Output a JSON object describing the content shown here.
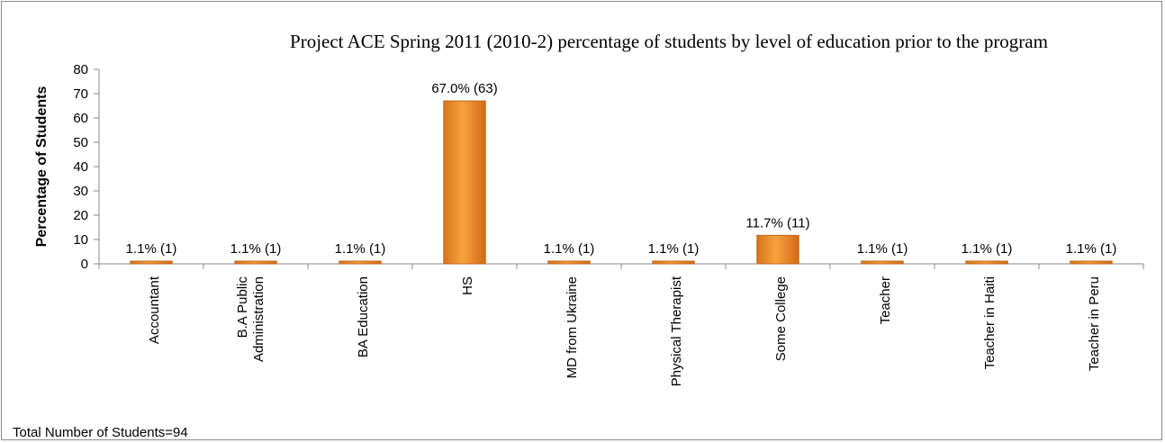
{
  "chart_data": {
    "type": "bar",
    "title": "Project ACE Spring 2011 (2010-2)  percentage of students by level of education prior to the program",
    "xlabel": "",
    "ylabel": "Percentage of Students",
    "ylim": [
      0,
      80
    ],
    "yticks": [
      "0",
      "10",
      "20",
      "30",
      "40",
      "50",
      "60",
      "70",
      "80"
    ],
    "grid": false,
    "categories": [
      [
        "Accountant"
      ],
      [
        "B.A Public",
        "Administration"
      ],
      [
        "BA Education"
      ],
      [
        "HS"
      ],
      [
        "MD from Ukraine"
      ],
      [
        "Physical  Therapist"
      ],
      [
        "Some College"
      ],
      [
        "Teacher"
      ],
      [
        "Teacher in Haiti"
      ],
      [
        "Teacher in  Peru"
      ]
    ],
    "values": [
      1.1,
      1.1,
      1.1,
      67.0,
      1.1,
      1.1,
      11.7,
      1.1,
      1.1,
      1.1
    ],
    "data_labels": [
      "1.1% (1)",
      "1.1% (1)",
      "1.1% (1)",
      "67.0% (63)",
      "1.1% (1)",
      "1.1% (1)",
      "11.7% (11)",
      "1.1% (1)",
      "1.1% (1)",
      "1.1% (1)"
    ],
    "bar_color": "#f0932a",
    "bar_edge_color": "#c0651a",
    "footnote": "Total Number of Students=94"
  }
}
